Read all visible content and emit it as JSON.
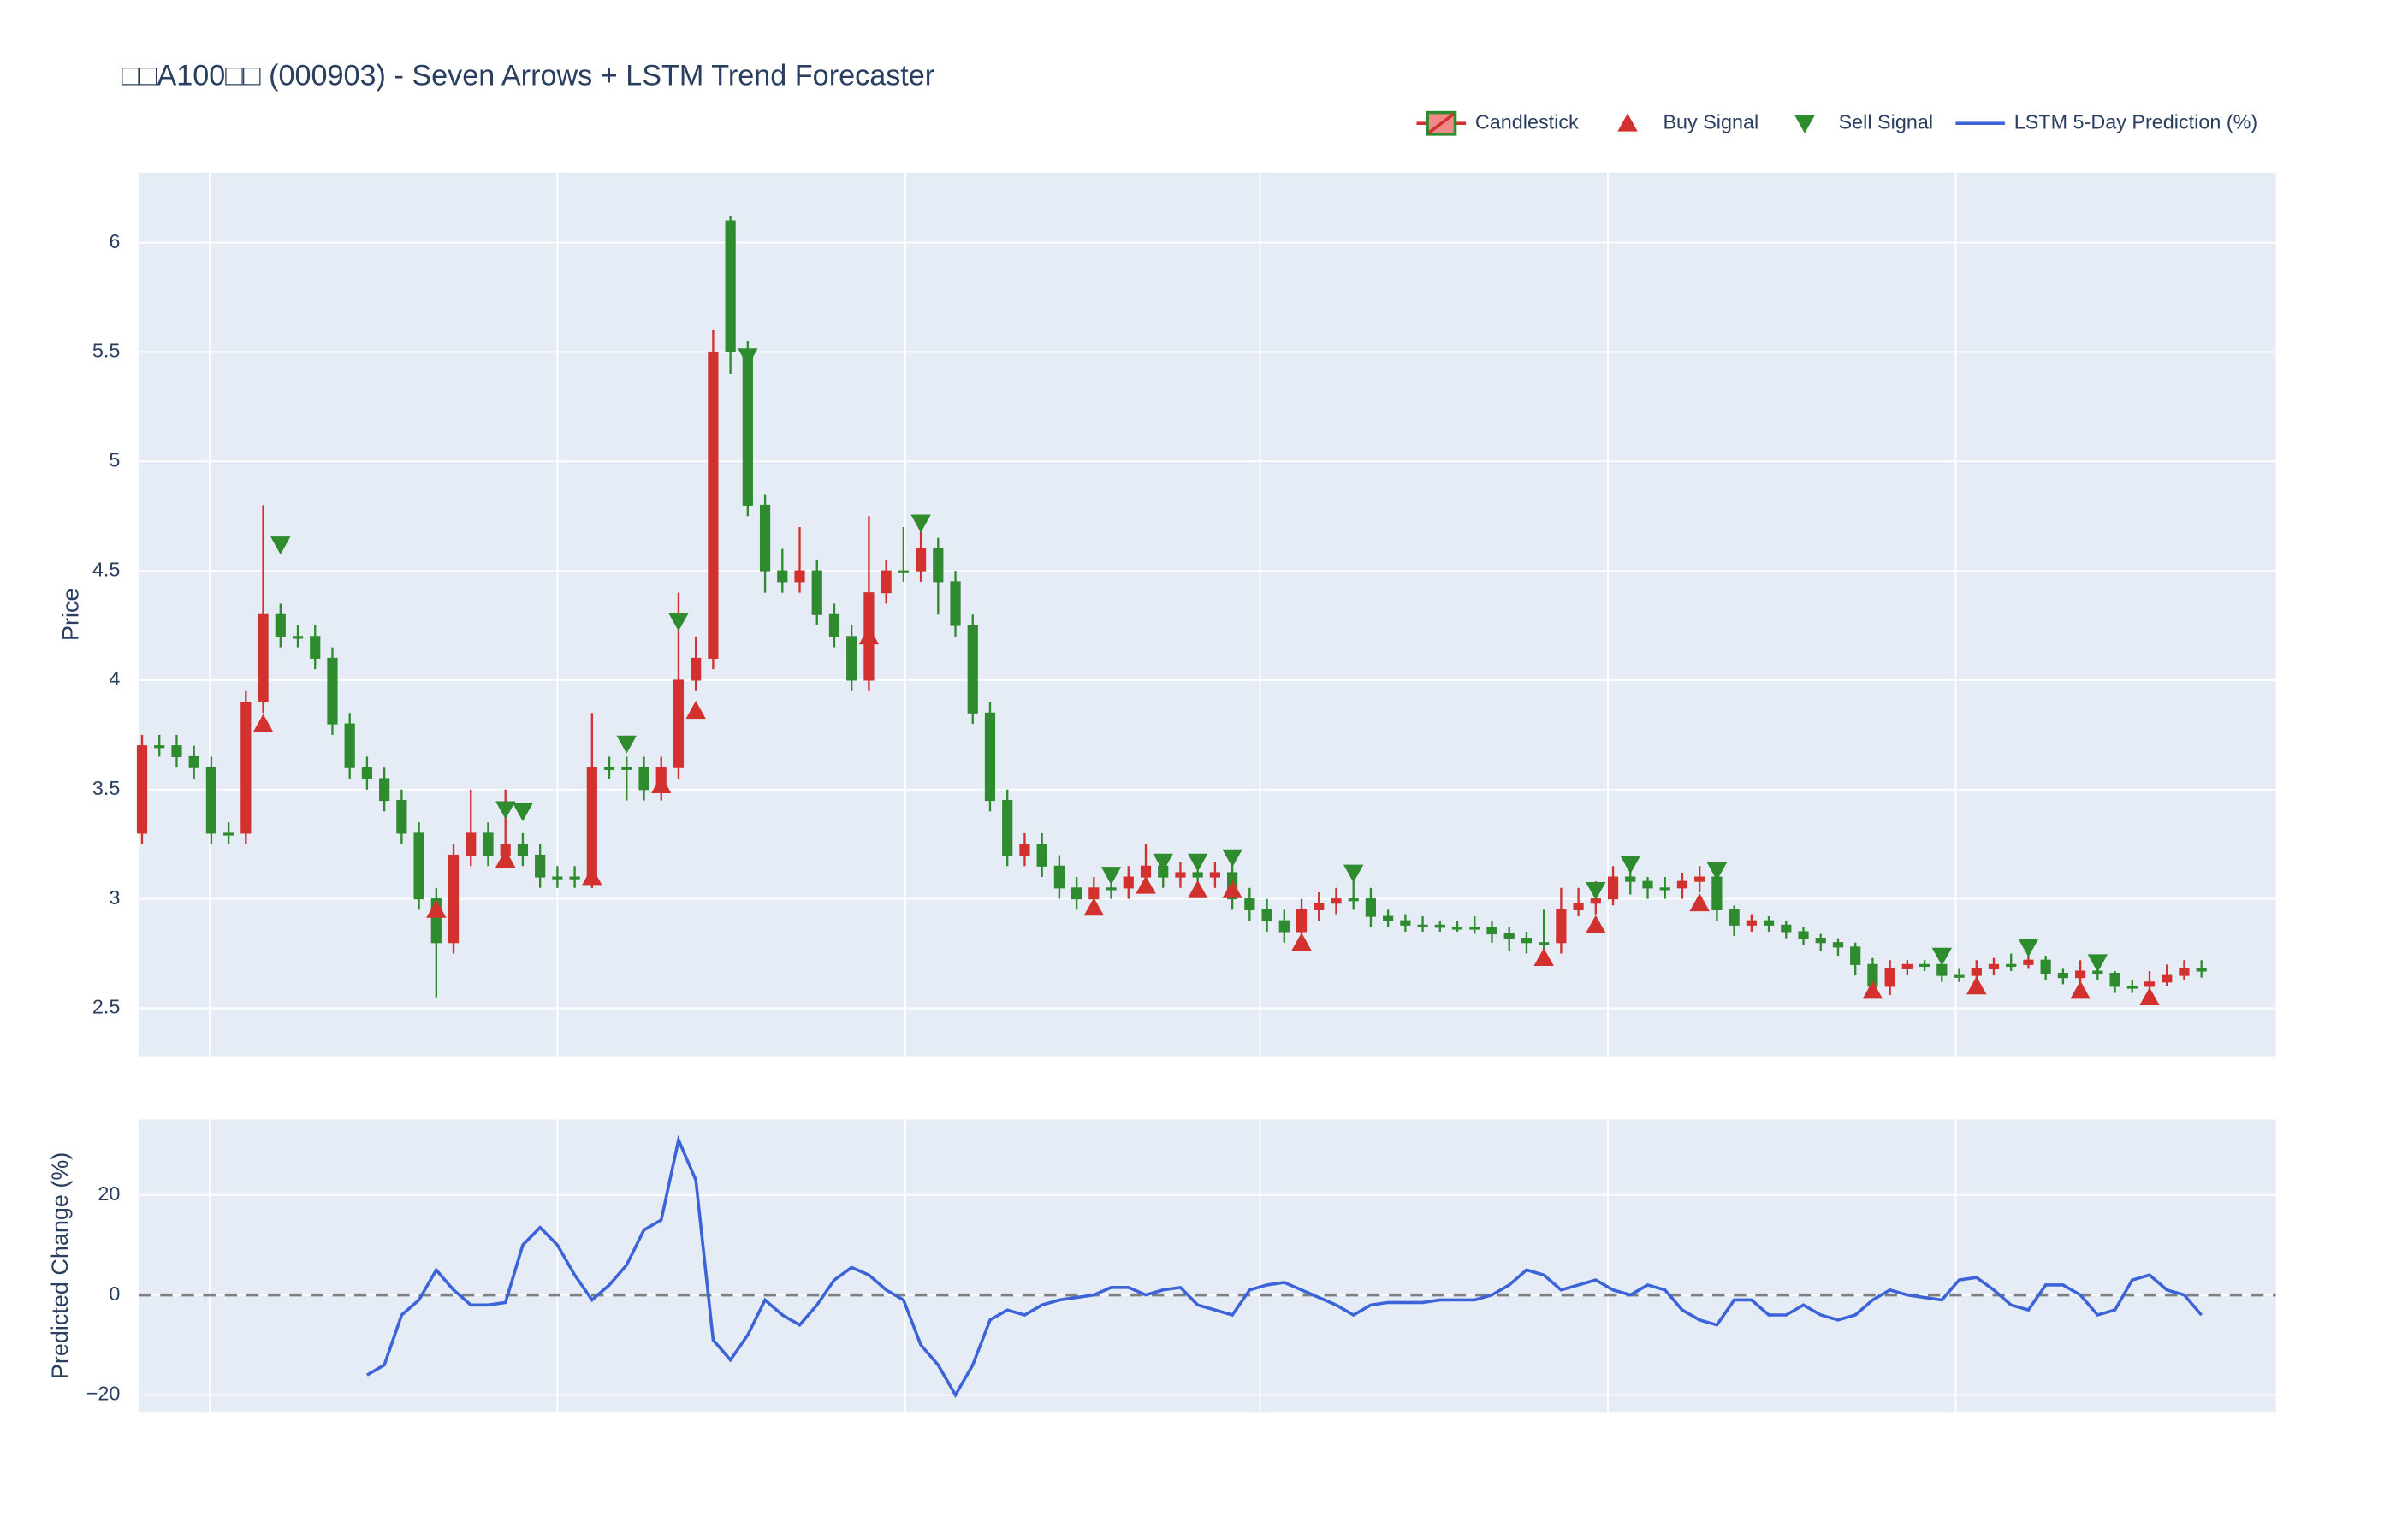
{
  "chart_data": [
    {
      "type": "candlestick",
      "title": "□□A100□□ (000903) - Seven Arrows + LSTM Trend Forecaster",
      "ylabel": "Price",
      "name": "Candlestick",
      "increasing_color": "#d3312f",
      "decreasing_color": "#2e8b2e",
      "legend": "top-right",
      "grid": true,
      "xlim": [
        -0.2,
        123.3
      ],
      "xticks": [
        3.9,
        24,
        44.1,
        64.6,
        84.7,
        104.8
      ],
      "ylim": [
        2.28,
        6.32
      ],
      "yticks": [
        2.5,
        3,
        3.5,
        4,
        4.5,
        5,
        5.5,
        6
      ],
      "open": [
        3.3,
        3.7,
        3.7,
        3.65,
        3.6,
        3.3,
        3.3,
        3.9,
        4.3,
        4.2,
        4.2,
        4.1,
        3.8,
        3.6,
        3.55,
        3.45,
        3.3,
        3.0,
        2.8,
        3.2,
        3.3,
        3.2,
        3.25,
        3.2,
        3.1,
        3.1,
        3.1,
        3.6,
        3.6,
        3.6,
        3.5,
        3.6,
        4.0,
        4.1,
        6.1,
        5.5,
        4.8,
        4.5,
        4.45,
        4.5,
        4.3,
        4.2,
        4.0,
        4.4,
        4.5,
        4.5,
        4.6,
        4.45,
        4.25,
        3.85,
        3.45,
        3.2,
        3.25,
        3.15,
        3.05,
        3.0,
        3.05,
        3.05,
        3.1,
        3.15,
        3.1,
        3.12,
        3.1,
        3.12,
        3.0,
        2.95,
        2.9,
        2.85,
        2.95,
        2.98,
        3.0,
        3.0,
        2.92,
        2.9,
        2.88,
        2.88,
        2.87,
        2.87,
        2.87,
        2.84,
        2.82,
        2.8,
        2.8,
        2.95,
        2.98,
        3.0,
        3.1,
        3.08,
        3.05,
        3.05,
        3.08,
        3.1,
        2.95,
        2.88,
        2.9,
        2.88,
        2.85,
        2.82,
        2.8,
        2.78,
        2.7,
        2.6,
        2.68,
        2.7,
        2.7,
        2.65,
        2.65,
        2.68,
        2.7,
        2.7,
        2.72,
        2.66,
        2.64,
        2.67,
        2.66,
        2.6,
        2.6,
        2.62,
        2.65,
        2.68
      ],
      "high": [
        3.75,
        3.75,
        3.75,
        3.7,
        3.65,
        3.35,
        3.95,
        4.8,
        4.35,
        4.25,
        4.25,
        4.15,
        3.85,
        3.65,
        3.6,
        3.5,
        3.35,
        3.05,
        3.25,
        3.5,
        3.35,
        3.5,
        3.3,
        3.25,
        3.15,
        3.15,
        3.85,
        3.65,
        3.65,
        3.65,
        3.65,
        4.4,
        4.2,
        5.6,
        6.12,
        5.55,
        4.85,
        4.6,
        4.7,
        4.55,
        4.35,
        4.25,
        4.75,
        4.55,
        4.7,
        4.75,
        4.65,
        4.5,
        4.3,
        3.9,
        3.5,
        3.3,
        3.3,
        3.2,
        3.1,
        3.1,
        3.1,
        3.15,
        3.25,
        3.2,
        3.17,
        3.17,
        3.17,
        3.17,
        3.05,
        3.0,
        2.95,
        3.0,
        3.03,
        3.05,
        3.1,
        3.05,
        2.95,
        2.93,
        2.92,
        2.9,
        2.9,
        2.92,
        2.9,
        2.87,
        2.85,
        2.95,
        3.05,
        3.05,
        3.08,
        3.15,
        3.13,
        3.1,
        3.1,
        3.12,
        3.15,
        3.13,
        2.97,
        2.93,
        2.92,
        2.9,
        2.87,
        2.84,
        2.82,
        2.8,
        2.73,
        2.72,
        2.72,
        2.72,
        2.72,
        2.68,
        2.72,
        2.73,
        2.75,
        2.76,
        2.74,
        2.68,
        2.72,
        2.69,
        2.67,
        2.63,
        2.67,
        2.7,
        2.72,
        2.72
      ],
      "low": [
        3.25,
        3.65,
        3.6,
        3.55,
        3.25,
        3.25,
        3.25,
        3.85,
        4.15,
        4.15,
        4.05,
        3.75,
        3.55,
        3.5,
        3.4,
        3.25,
        2.95,
        2.55,
        2.75,
        3.15,
        3.15,
        3.15,
        3.15,
        3.05,
        3.05,
        3.05,
        3.05,
        3.55,
        3.45,
        3.45,
        3.45,
        3.55,
        3.95,
        4.05,
        5.4,
        4.75,
        4.4,
        4.4,
        4.4,
        4.25,
        4.15,
        3.95,
        3.95,
        4.35,
        4.45,
        4.45,
        4.3,
        4.2,
        3.8,
        3.4,
        3.15,
        3.15,
        3.1,
        3.0,
        2.95,
        2.95,
        3.0,
        3.0,
        3.05,
        3.05,
        3.05,
        3.05,
        3.05,
        2.95,
        2.9,
        2.85,
        2.8,
        2.8,
        2.9,
        2.93,
        2.95,
        2.87,
        2.87,
        2.85,
        2.85,
        2.85,
        2.85,
        2.84,
        2.8,
        2.76,
        2.75,
        2.75,
        2.75,
        2.92,
        2.93,
        2.97,
        3.02,
        3.0,
        3.0,
        3.0,
        3.03,
        2.9,
        2.83,
        2.85,
        2.85,
        2.82,
        2.79,
        2.76,
        2.74,
        2.65,
        2.56,
        2.56,
        2.65,
        2.67,
        2.62,
        2.62,
        2.62,
        2.65,
        2.67,
        2.68,
        2.63,
        2.61,
        2.61,
        2.63,
        2.57,
        2.57,
        2.57,
        2.6,
        2.63,
        2.64
      ],
      "close": [
        3.7,
        3.7,
        3.65,
        3.6,
        3.3,
        3.3,
        3.9,
        4.3,
        4.2,
        4.2,
        4.1,
        3.8,
        3.6,
        3.55,
        3.45,
        3.3,
        3.0,
        2.8,
        3.2,
        3.3,
        3.2,
        3.25,
        3.2,
        3.1,
        3.1,
        3.1,
        3.6,
        3.6,
        3.6,
        3.5,
        3.6,
        4.0,
        4.1,
        5.5,
        5.5,
        4.8,
        4.5,
        4.45,
        4.5,
        4.3,
        4.2,
        4.0,
        4.4,
        4.5,
        4.5,
        4.6,
        4.45,
        4.25,
        3.85,
        3.45,
        3.2,
        3.25,
        3.15,
        3.05,
        3.0,
        3.05,
        3.05,
        3.1,
        3.15,
        3.1,
        3.12,
        3.1,
        3.12,
        3.0,
        2.95,
        2.9,
        2.85,
        2.95,
        2.98,
        3.0,
        3.0,
        2.92,
        2.9,
        2.88,
        2.88,
        2.87,
        2.87,
        2.87,
        2.84,
        2.82,
        2.8,
        2.8,
        2.95,
        2.98,
        3.0,
        3.1,
        3.08,
        3.05,
        3.05,
        3.08,
        3.1,
        2.95,
        2.88,
        2.9,
        2.88,
        2.85,
        2.82,
        2.8,
        2.78,
        2.7,
        2.6,
        2.68,
        2.7,
        2.7,
        2.65,
        2.65,
        2.68,
        2.7,
        2.7,
        2.72,
        2.66,
        2.64,
        2.67,
        2.66,
        2.6,
        2.6,
        2.62,
        2.65,
        2.68,
        2.67
      ],
      "signals": [
        {
          "name": "Buy Signal",
          "color": "#d3312f",
          "marker": "triangle-up",
          "x": [
            7,
            17,
            21,
            26,
            30,
            32,
            42,
            55,
            58,
            61,
            63,
            67,
            81,
            84,
            90,
            100,
            106,
            112,
            116
          ],
          "values": [
            3.8,
            2.95,
            3.18,
            3.1,
            3.52,
            3.86,
            4.2,
            2.96,
            3.06,
            3.04,
            3.04,
            2.8,
            2.73,
            2.88,
            2.98,
            2.58,
            2.6,
            2.58,
            2.55
          ]
        },
        {
          "name": "Sell Signal",
          "color": "#2e8b2e",
          "marker": "triangle-down",
          "x": [
            8,
            21,
            22,
            28,
            31,
            35,
            45,
            56,
            59,
            61,
            63,
            70,
            84,
            86,
            91,
            104,
            109,
            113
          ],
          "values": [
            4.62,
            3.41,
            3.4,
            3.71,
            4.27,
            5.48,
            4.72,
            3.11,
            3.17,
            3.17,
            3.19,
            3.12,
            3.04,
            3.16,
            3.13,
            2.74,
            2.78,
            2.71
          ]
        }
      ]
    },
    {
      "type": "line",
      "ylabel": "Predicted Change (%)",
      "grid": true,
      "xlim": [
        -0.2,
        123.3
      ],
      "xticks": [
        3.9,
        24,
        44.1,
        64.6,
        84.7,
        104.8
      ],
      "ylim": [
        -23.4,
        35.1
      ],
      "yticks": [
        {
          "value": -20,
          "label": "−20"
        },
        0,
        20
      ],
      "hline": 0,
      "hline_color": "#7f7f7f",
      "series": [
        {
          "name": "LSTM 5-Day Prediction (%)",
          "color": "#3c64d8",
          "values": [
            null,
            null,
            null,
            null,
            null,
            null,
            null,
            null,
            null,
            null,
            null,
            null,
            null,
            -16,
            -14,
            -4,
            -1,
            5,
            1,
            -2,
            -2,
            -1.5,
            10,
            13.5,
            10,
            4,
            -1,
            2,
            6,
            13,
            15,
            31,
            23,
            -9,
            -13,
            -8,
            -1,
            -4,
            -6,
            -2,
            3,
            5.5,
            4,
            1,
            -1,
            -10,
            -14,
            -20,
            -14,
            -5,
            -3,
            -4,
            -2,
            -1,
            -0.5,
            0,
            1.5,
            1.5,
            0,
            1,
            1.5,
            -2,
            -3,
            -4,
            1,
            2,
            2.5,
            1,
            -0.5,
            -2,
            -4,
            -2,
            -1.5,
            -1.5,
            -1.5,
            -1,
            -1,
            -1,
            0,
            2,
            5,
            4,
            1,
            2,
            3,
            1,
            0,
            2,
            1,
            -3,
            -5,
            -6,
            -1,
            -1,
            -4,
            -4,
            -2,
            -4,
            -5,
            -4,
            -1,
            1,
            0,
            -0.5,
            -1,
            3,
            3.5,
            1,
            -2,
            -3,
            2,
            2,
            0,
            -4,
            -3,
            3,
            4,
            1,
            0,
            -4
          ]
        }
      ]
    }
  ]
}
